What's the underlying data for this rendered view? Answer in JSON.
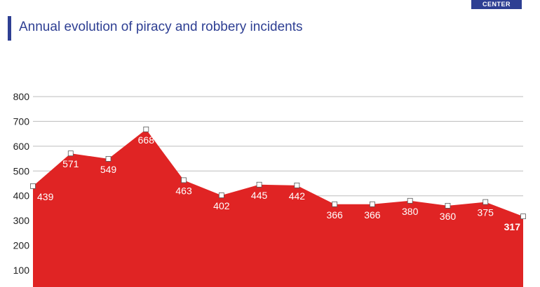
{
  "header": {
    "badge_label": "CENTER",
    "title": "Annual evolution of piracy and robbery incidents"
  },
  "colors": {
    "area_fill": "#e02424",
    "title_blue": "#2e3f93",
    "grid": "#bdbdbd",
    "marker_fill": "#ffffff",
    "marker_stroke": "#555555"
  },
  "chart_data": {
    "type": "area",
    "title": "Annual evolution of piracy and robbery incidents",
    "xlabel": "",
    "ylabel": "",
    "ylim": [
      0,
      800
    ],
    "yticks": [
      100,
      200,
      300,
      400,
      500,
      600,
      700,
      800
    ],
    "grid": true,
    "legend": "none",
    "series": [
      {
        "values": [
          439,
          571,
          549,
          668,
          463,
          402,
          445,
          442,
          366,
          366,
          380,
          360,
          375,
          317
        ],
        "data_labels": [
          "439",
          "571",
          "549",
          "668",
          "463",
          "402",
          "445",
          "442",
          "366",
          "366",
          "380",
          "360",
          "375",
          "317"
        ]
      }
    ]
  }
}
